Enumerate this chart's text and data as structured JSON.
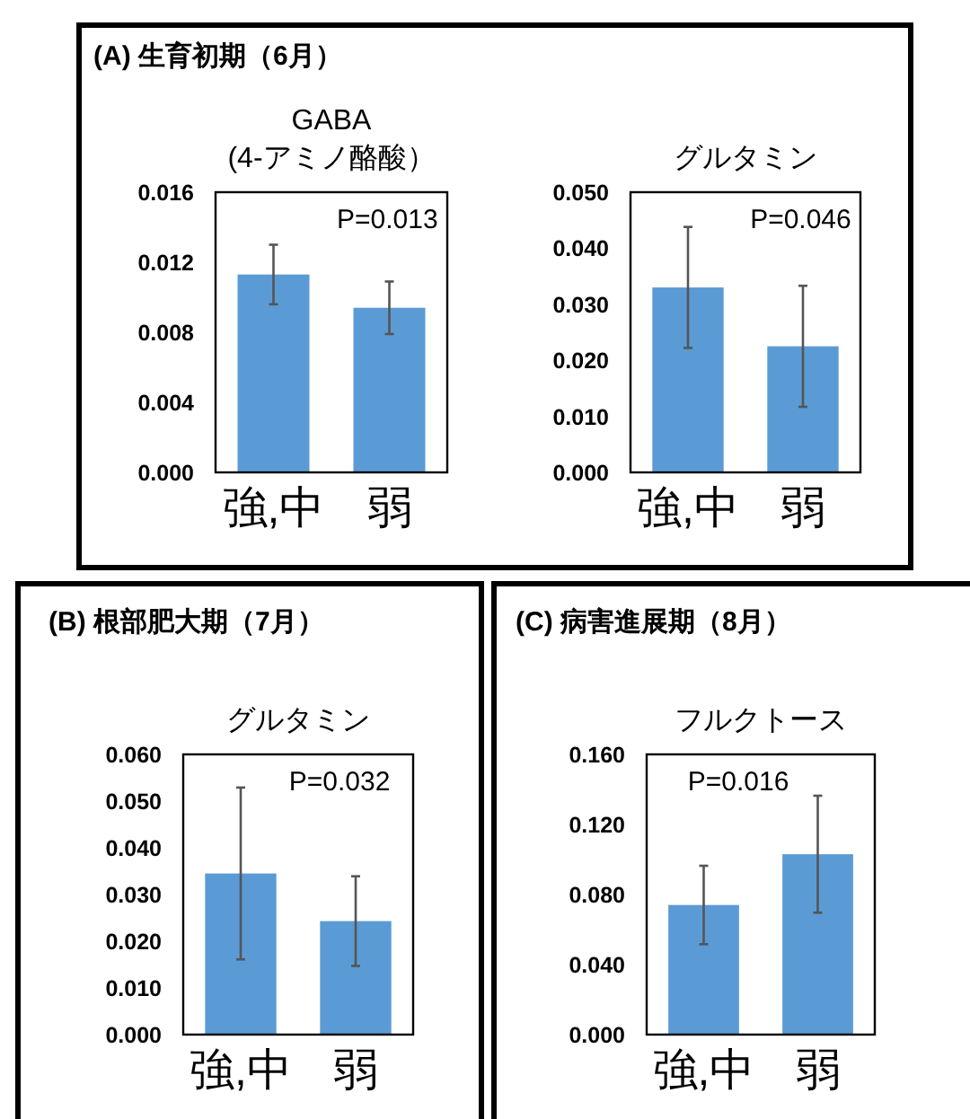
{
  "chart_data": [
    {
      "type": "bar",
      "title": "GABA\n(4-アミノ酪酸）",
      "categories": [
        "強,中",
        "弱"
      ],
      "values": [
        0.0113,
        0.0094
      ],
      "errors": [
        0.0017,
        0.0015
      ],
      "color": "#5b9bd5",
      "ylim": [
        0,
        0.016
      ],
      "yticks": [
        {
          "value": 0,
          "label": "0.000"
        },
        {
          "value": 0.004,
          "label": "0.004"
        },
        {
          "value": 0.008,
          "label": "0.008"
        },
        {
          "value": 0.012,
          "label": "0.012"
        },
        {
          "value": 0.016,
          "label": "0.016"
        }
      ],
      "annotations": [
        "(A) 生育初期（6月）",
        "P=0.013"
      ]
    },
    {
      "type": "bar",
      "title": "グルタミン",
      "categories": [
        "強,中",
        "弱"
      ],
      "values": [
        0.033,
        0.0225
      ],
      "errors": [
        0.0108,
        0.0108
      ],
      "color": "#5b9bd5",
      "ylim": [
        0,
        0.05
      ],
      "yticks": [
        {
          "value": 0,
          "label": "0.000"
        },
        {
          "value": 0.01,
          "label": "0.010"
        },
        {
          "value": 0.02,
          "label": "0.020"
        },
        {
          "value": 0.03,
          "label": "0.030"
        },
        {
          "value": 0.04,
          "label": "0.040"
        },
        {
          "value": 0.05,
          "label": "0.050"
        }
      ],
      "annotations": [
        "P=0.046"
      ]
    },
    {
      "type": "bar",
      "title": "グルタミン",
      "categories": [
        "強,中",
        "弱"
      ],
      "values": [
        0.0345,
        0.0243
      ],
      "errors": [
        0.0184,
        0.0096
      ],
      "color": "#5b9bd5",
      "ylim": [
        0,
        0.06
      ],
      "yticks": [
        {
          "value": 0,
          "label": "0.000"
        },
        {
          "value": 0.01,
          "label": "0.010"
        },
        {
          "value": 0.02,
          "label": "0.020"
        },
        {
          "value": 0.03,
          "label": "0.030"
        },
        {
          "value": 0.04,
          "label": "0.040"
        },
        {
          "value": 0.05,
          "label": "0.050"
        },
        {
          "value": 0.06,
          "label": "0.060"
        }
      ],
      "annotations": [
        "(B) 根部肥大期（7月）",
        "P=0.032"
      ]
    },
    {
      "type": "bar",
      "title": "フルクトース",
      "categories": [
        "強,中",
        "弱"
      ],
      "values": [
        0.074,
        0.103
      ],
      "errors": [
        0.0224,
        0.0334
      ],
      "color": "#5b9bd5",
      "ylim": [
        0,
        0.16
      ],
      "yticks": [
        {
          "value": 0,
          "label": "0.000"
        },
        {
          "value": 0.04,
          "label": "0.040"
        },
        {
          "value": 0.08,
          "label": "0.080"
        },
        {
          "value": 0.12,
          "label": "0.120"
        },
        {
          "value": 0.16,
          "label": "0.160"
        }
      ],
      "annotations": [
        "(C) 病害進展期（8月）",
        "P=0.016"
      ]
    }
  ]
}
